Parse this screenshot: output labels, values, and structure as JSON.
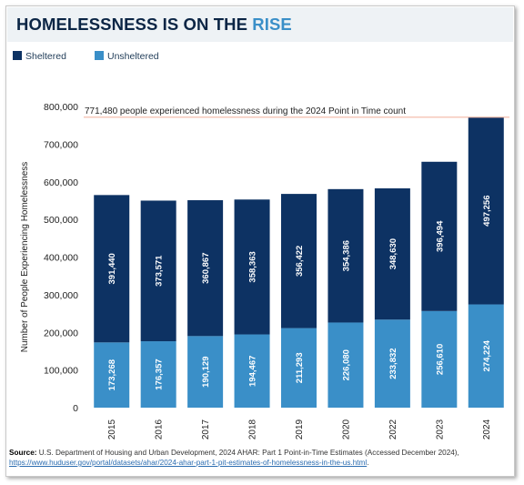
{
  "header": {
    "title_main": "HOMELESSNESS IS ON THE ",
    "title_accent": "RISE"
  },
  "colors": {
    "sheltered": "#0d3263",
    "unsheltered": "#3a8fc8",
    "title_accent": "#3a8fc8",
    "reference_line": "#f4b7a4"
  },
  "chart_data": {
    "type": "bar",
    "stacked": true,
    "categories": [
      "2015",
      "2016",
      "2017",
      "2018",
      "2019",
      "2020",
      "2022",
      "2023",
      "2024"
    ],
    "series": [
      {
        "name": "Unsheltered",
        "values": [
          173268,
          176357,
          190129,
          194467,
          211293,
          226080,
          233832,
          256610,
          274224
        ],
        "labels": [
          "173,268",
          "176,357",
          "190,129",
          "194,467",
          "211,293",
          "226,080",
          "233,832",
          "256,610",
          "274,224"
        ]
      },
      {
        "name": "Sheltered",
        "values": [
          391440,
          373571,
          360867,
          358363,
          356422,
          354386,
          348630,
          396494,
          497256
        ],
        "labels": [
          "391,440",
          "373,571",
          "360,867",
          "358,363",
          "356,422",
          "354,386",
          "348,630",
          "396,494",
          "497,256"
        ]
      }
    ],
    "ylabel": "Number of People Experiencing Homelessness",
    "ylim": [
      0,
      800000
    ],
    "yticks": [
      0,
      100000,
      200000,
      300000,
      400000,
      500000,
      600000,
      700000,
      800000
    ],
    "ytick_labels": [
      "0",
      "100,000",
      "200,000",
      "300,000",
      "400,000",
      "500,000",
      "600,000",
      "700,000",
      "800,000"
    ],
    "reference_line": {
      "value": 771480,
      "label": "771,480 people experienced homelessness during the 2024 Point in Time count"
    },
    "legend_position": "top-left",
    "grid": false
  },
  "source": {
    "label": "Source:",
    "text": "U.S. Department of Housing and Urban Development, 2024 AHAR: Part 1 Point-in-Time Estimates (Accessed December 2024),",
    "link": "https://www.huduser.gov/portal/datasets/ahar/2024-ahar-part-1-pit-estimates-of-homelessness-in-the-us.html",
    "suffix": "."
  }
}
